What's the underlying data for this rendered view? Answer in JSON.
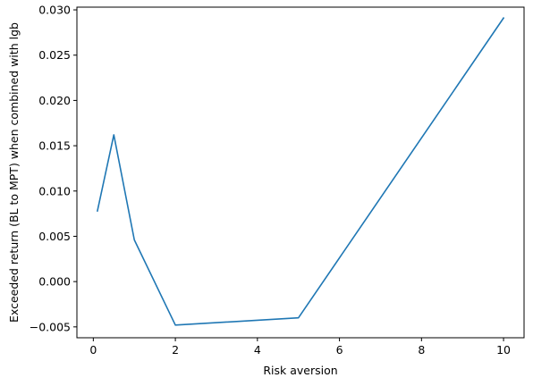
{
  "chart_data": {
    "type": "line",
    "title": "",
    "xlabel": "Risk aversion",
    "ylabel": "Exceeded return (BL to MPT) when combined with lgb",
    "xlim": [
      -0.4,
      10.5
    ],
    "ylim": [
      -0.0062,
      0.0303
    ],
    "x_ticks": [
      0,
      2,
      4,
      6,
      8,
      10
    ],
    "y_ticks": [
      -0.005,
      0.0,
      0.005,
      0.01,
      0.015,
      0.02,
      0.025,
      0.03
    ],
    "x_tick_labels": [
      "0",
      "2",
      "4",
      "6",
      "8",
      "10"
    ],
    "y_tick_labels": [
      "−0.005",
      "0.000",
      "0.005",
      "0.010",
      "0.015",
      "0.020",
      "0.025",
      "0.030"
    ],
    "grid": false,
    "line_color": "#1f77b4",
    "series": [
      {
        "x": [
          0.1,
          0.5,
          1,
          2,
          5,
          10
        ],
        "y": [
          0.0078,
          0.0162,
          0.0046,
          -0.0048,
          -0.004,
          0.0291
        ]
      }
    ]
  }
}
